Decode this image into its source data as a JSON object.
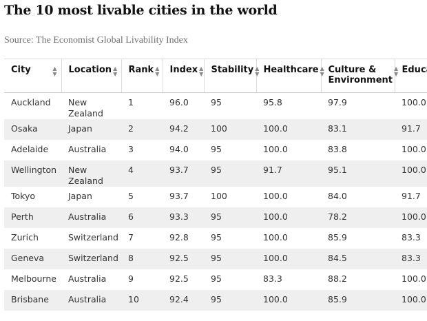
{
  "title": "The 10 most livable cities in the world",
  "source": "Source: The Economist Global Livability Index",
  "columns": [
    "City",
    "Location",
    "Rank",
    "Index",
    "Stability",
    "Healthcare",
    "Culture & Environment",
    "Education"
  ],
  "rows": [
    {
      "city": "Auckland",
      "location": "New Zealand",
      "rank": "1",
      "index": "96.0",
      "stability": "95",
      "healthcare": "95.8",
      "culture": "97.9",
      "education": "100.0"
    },
    {
      "city": "Osaka",
      "location": "Japan",
      "rank": "2",
      "index": "94.2",
      "stability": "100",
      "healthcare": "100.0",
      "culture": "83.1",
      "education": "91.7"
    },
    {
      "city": "Adelaide",
      "location": "Australia",
      "rank": "3",
      "index": "94.0",
      "stability": "95",
      "healthcare": "100.0",
      "culture": "83.8",
      "education": "100.0"
    },
    {
      "city": "Wellington",
      "location": "New Zealand",
      "rank": "4",
      "index": "93.7",
      "stability": "95",
      "healthcare": "91.7",
      "culture": "95.1",
      "education": "100.0"
    },
    {
      "city": "Tokyo",
      "location": "Japan",
      "rank": "5",
      "index": "93.7",
      "stability": "100",
      "healthcare": "100.0",
      "culture": "84.0",
      "education": "91.7"
    },
    {
      "city": "Perth",
      "location": "Australia",
      "rank": "6",
      "index": "93.3",
      "stability": "95",
      "healthcare": "100.0",
      "culture": "78.2",
      "education": "100.0"
    },
    {
      "city": "Zurich",
      "location": "Switzerland",
      "rank": "7",
      "index": "92.8",
      "stability": "95",
      "healthcare": "100.0",
      "culture": "85.9",
      "education": "83.3"
    },
    {
      "city": "Geneva",
      "location": "Switzerland",
      "rank": "8",
      "index": "92.5",
      "stability": "95",
      "healthcare": "100.0",
      "culture": "84.5",
      "education": "83.3"
    },
    {
      "city": "Melbourne",
      "location": "Australia",
      "rank": "9",
      "index": "92.5",
      "stability": "95",
      "healthcare": "83.3",
      "culture": "88.2",
      "education": "100.0"
    },
    {
      "city": "Brisbane",
      "location": "Australia",
      "rank": "10",
      "index": "92.4",
      "stability": "95",
      "healthcare": "100.0",
      "culture": "85.9",
      "education": "100.0"
    }
  ],
  "sort_icon": "sort-up-down-icon"
}
